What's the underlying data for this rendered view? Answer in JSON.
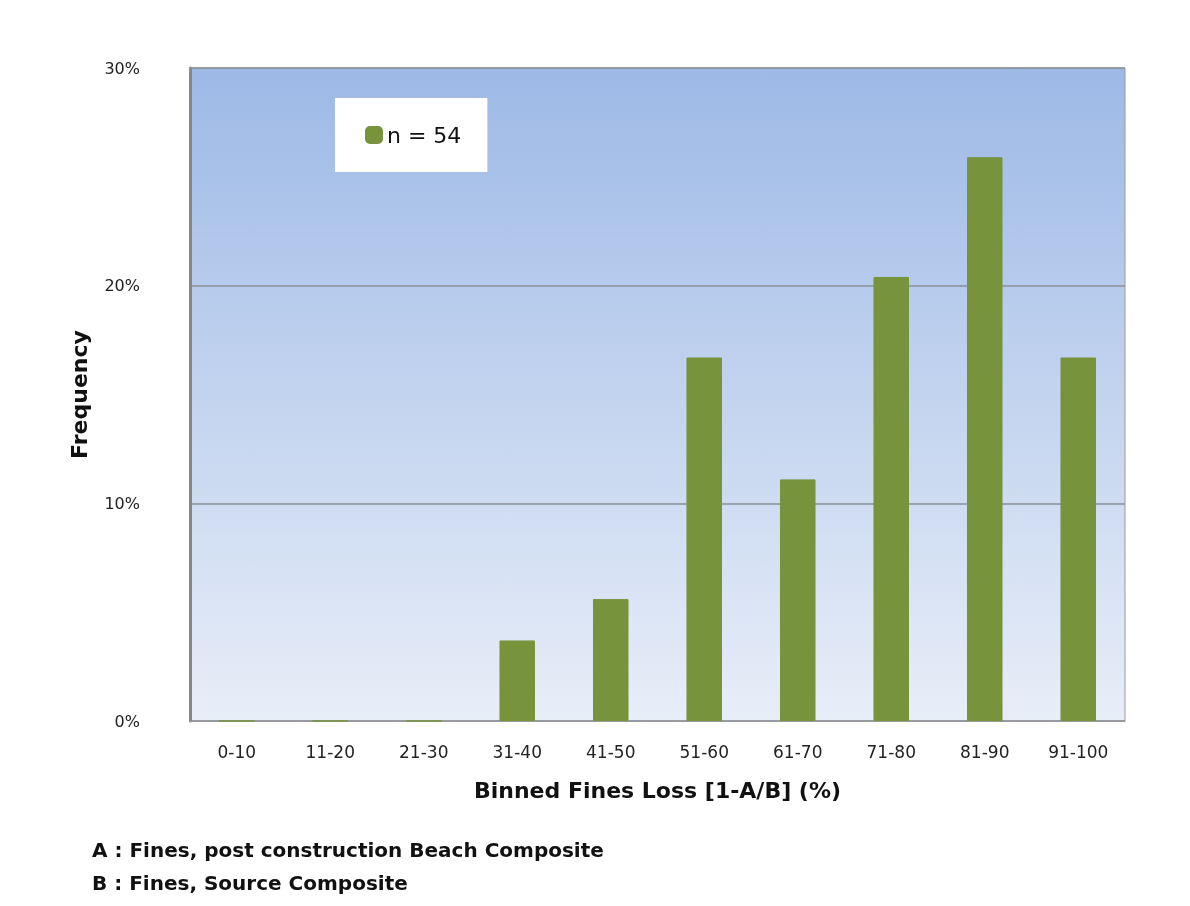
{
  "chart_data": {
    "type": "bar",
    "xlabel": "Binned Fines Loss [1-A/B] (%)",
    "ylabel": "Frequency",
    "categories": [
      "0-10",
      "11-20",
      "21-30",
      "31-40",
      "41-50",
      "51-60",
      "61-70",
      "71-80",
      "81-90",
      "91-100"
    ],
    "series": [
      {
        "name": "n = 54",
        "color": "#77933c",
        "values": [
          0,
          0,
          0,
          3.7,
          5.6,
          16.7,
          11.1,
          20.4,
          25.9,
          16.7
        ]
      }
    ],
    "ylim": [
      0,
      30
    ],
    "yticks": [
      {
        "value": 0,
        "label": "0%"
      },
      {
        "value": 10,
        "label": "10%"
      },
      {
        "value": 20,
        "label": "20%"
      },
      {
        "value": 30,
        "label": "30%"
      }
    ],
    "grid": "y",
    "legend": "top left",
    "annotations": [
      "A : Fines, post construction Beach Composite",
      "B : Fines, Source Composite"
    ]
  }
}
